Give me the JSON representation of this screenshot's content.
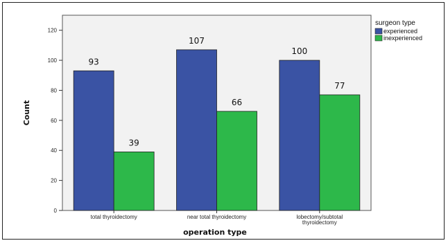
{
  "chart_data": {
    "type": "bar",
    "xlabel": "operation type",
    "ylabel": "Count",
    "ylim": [
      0,
      130
    ],
    "yticks": [
      0,
      20,
      40,
      60,
      80,
      100,
      120
    ],
    "categories": [
      [
        "total thyroidectomy"
      ],
      [
        "near total thyroidectomy"
      ],
      [
        "lobectomy/subtotal",
        "thyroidectomy"
      ]
    ],
    "series": [
      {
        "name": "experienced",
        "color": "#3a53a4",
        "values": [
          93,
          107,
          100
        ]
      },
      {
        "name": "inexperienced",
        "color": "#2db84a",
        "values": [
          39,
          66,
          77
        ]
      }
    ],
    "legend": {
      "title": "surgeon type",
      "position": "top-right"
    },
    "grid": false
  }
}
